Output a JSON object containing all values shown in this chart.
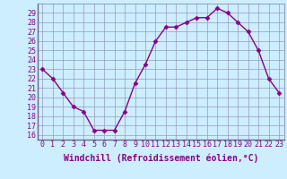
{
  "x": [
    0,
    1,
    2,
    3,
    4,
    5,
    6,
    7,
    8,
    9,
    10,
    11,
    12,
    13,
    14,
    15,
    16,
    17,
    18,
    19,
    20,
    21,
    22,
    23
  ],
  "y": [
    23,
    22,
    20.5,
    19,
    18.5,
    16.5,
    16.5,
    16.5,
    18.5,
    21.5,
    23.5,
    26,
    27.5,
    27.5,
    28,
    28.5,
    28.5,
    29.5,
    29,
    28,
    27,
    25,
    22,
    20.5
  ],
  "line_color": "#880088",
  "marker": "D",
  "marker_size": 2.5,
  "bg_color": "#cceeff",
  "grid_color": "#9999bb",
  "ylim": [
    15.5,
    30
  ],
  "xlim": [
    -0.5,
    23.5
  ],
  "yticks": [
    16,
    17,
    18,
    19,
    20,
    21,
    22,
    23,
    24,
    25,
    26,
    27,
    28,
    29
  ],
  "xticks": [
    0,
    1,
    2,
    3,
    4,
    5,
    6,
    7,
    8,
    9,
    10,
    11,
    12,
    13,
    14,
    15,
    16,
    17,
    18,
    19,
    20,
    21,
    22,
    23
  ],
  "xlabel": "Windchill (Refroidissement éolien,°C)",
  "xlabel_fontsize": 7,
  "tick_fontsize": 6,
  "line_width": 1.0
}
